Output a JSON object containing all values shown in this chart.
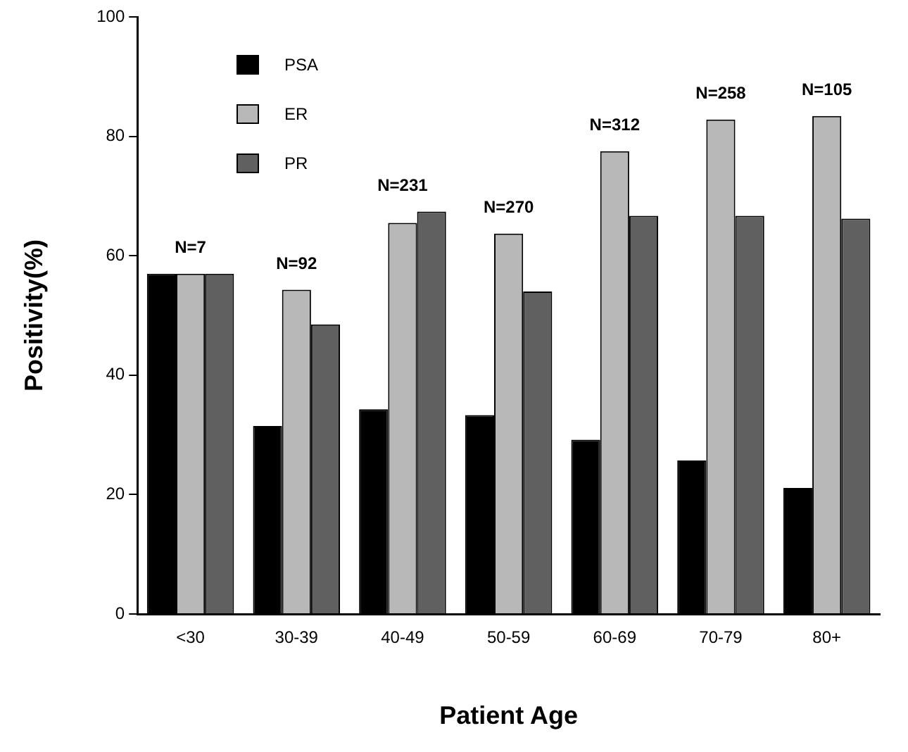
{
  "chart_data": {
    "type": "bar",
    "xlabel": "Patient Age",
    "ylabel": "Positivity(%)",
    "categories": [
      "<30",
      "30-39",
      "40-49",
      "50-59",
      "60-69",
      "70-79",
      "80+"
    ],
    "series": [
      {
        "name": "PSA",
        "color": "#000000",
        "values": [
          57,
          31.5,
          34.3,
          33.3,
          29.2,
          25.7,
          21.1
        ]
      },
      {
        "name": "ER",
        "color": "#b8b8b8",
        "values": [
          57,
          54.3,
          65.5,
          63.7,
          77.5,
          82.8,
          83.4
        ]
      },
      {
        "name": "PR",
        "color": "#606060",
        "values": [
          57,
          48.5,
          67.4,
          54,
          66.7,
          66.7,
          66.2
        ]
      }
    ],
    "ylim": [
      0,
      100
    ],
    "yticks": [
      0,
      20,
      40,
      60,
      80,
      100
    ],
    "grid": false,
    "legend": "top left",
    "annotations": [
      "N=7",
      "N=92",
      "N=231",
      "N=270",
      "N=312",
      "N=258",
      "N=105"
    ]
  }
}
